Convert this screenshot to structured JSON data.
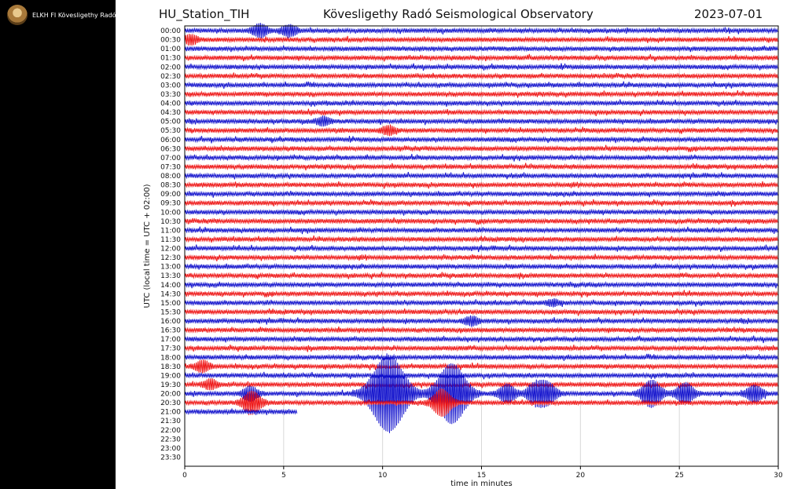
{
  "channel": {
    "logo_icon": "observatory-seal-icon",
    "title": "ELKH FI Kövesligethy Radó Seismological Observatory"
  },
  "header": {
    "station": "HU_Station_TIH",
    "observatory": "Kövesligethy Radó Seismological Observatory",
    "date": "2023-07-01"
  },
  "chart_data": {
    "type": "line",
    "title": "Kövesligethy Radó Seismological Observatory",
    "xlabel": "time in minutes",
    "ylabel": "UTC (local time = UTC + 02:00)",
    "xlim": [
      0,
      30
    ],
    "x_ticks": [
      0,
      5,
      10,
      15,
      20,
      25,
      30
    ],
    "grid": "vertical",
    "colors": [
      "#1111cc",
      "#ee1111"
    ],
    "rows": [
      "00:00",
      "00:30",
      "01:00",
      "01:30",
      "02:00",
      "02:30",
      "03:00",
      "03:30",
      "04:00",
      "04:30",
      "05:00",
      "05:30",
      "06:00",
      "06:30",
      "07:00",
      "07:30",
      "08:00",
      "08:30",
      "09:00",
      "09:30",
      "10:00",
      "10:30",
      "11:00",
      "11:30",
      "12:00",
      "12:30",
      "13:00",
      "13:30",
      "14:00",
      "14:30",
      "15:00",
      "15:30",
      "16:00",
      "16:30",
      "17:00",
      "17:30",
      "18:00",
      "18:30",
      "19:00",
      "19:30",
      "20:00",
      "20:30",
      "21:00",
      "21:30",
      "22:00",
      "22:30",
      "23:00",
      "23:30"
    ],
    "last_row_end_minute": 5.7,
    "events": [
      {
        "row": "00:00",
        "minute": 3.8,
        "amplitude": 1.4
      },
      {
        "row": "00:00",
        "minute": 5.3,
        "amplitude": 1.2
      },
      {
        "row": "00:30",
        "minute": 0.3,
        "amplitude": 1.0
      },
      {
        "row": "05:00",
        "minute": 7.0,
        "amplitude": 0.9
      },
      {
        "row": "05:30",
        "minute": 10.3,
        "amplitude": 0.9
      },
      {
        "row": "15:00",
        "minute": 18.6,
        "amplitude": 0.6
      },
      {
        "row": "16:00",
        "minute": 14.5,
        "amplitude": 0.9
      },
      {
        "row": "18:30",
        "minute": 0.9,
        "amplitude": 1.2
      },
      {
        "row": "19:30",
        "minute": 1.3,
        "amplitude": 1.0
      },
      {
        "row": "20:00",
        "minute": 3.3,
        "amplitude": 1.5
      },
      {
        "row": "20:30",
        "minute": 3.4,
        "amplitude": 2.5
      },
      {
        "row": "20:00",
        "minute": 10.3,
        "amplitude": 9.0
      },
      {
        "row": "20:00",
        "minute": 13.5,
        "amplitude": 7.0
      },
      {
        "row": "20:30",
        "minute": 13.0,
        "amplitude": 3.0
      },
      {
        "row": "20:00",
        "minute": 16.3,
        "amplitude": 2.0
      },
      {
        "row": "20:00",
        "minute": 17.7,
        "amplitude": 2.0
      },
      {
        "row": "20:00",
        "minute": 18.3,
        "amplitude": 2.5
      },
      {
        "row": "20:00",
        "minute": 23.6,
        "amplitude": 3.0
      },
      {
        "row": "20:00",
        "minute": 25.3,
        "amplitude": 2.3
      },
      {
        "row": "20:00",
        "minute": 28.8,
        "amplitude": 1.8
      }
    ]
  }
}
